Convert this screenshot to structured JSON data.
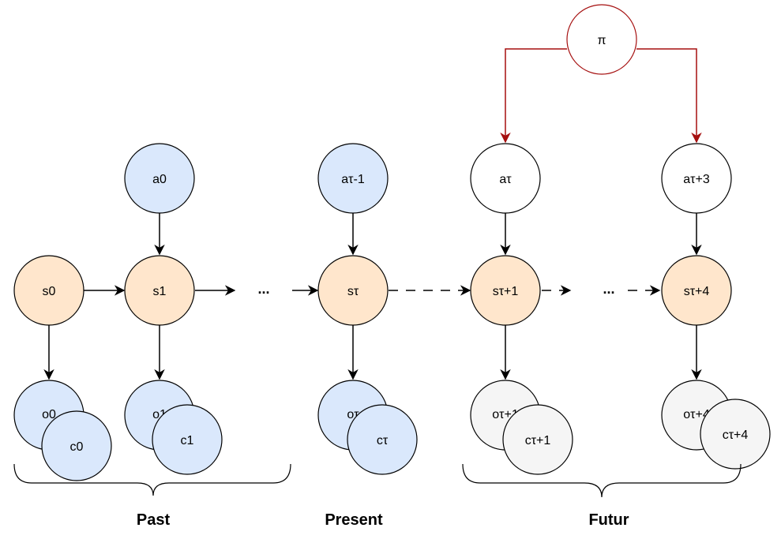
{
  "colors": {
    "blue_fill": "#dae8fc",
    "orange_fill": "#ffe6cc",
    "gray_fill": "#f5f5f5",
    "white_fill": "#ffffff",
    "edge": "#000000",
    "policy_edge": "#a50f0f"
  },
  "nodes": {
    "a0": "a0",
    "s0": "s0",
    "s1": "s1",
    "o0": "o0",
    "c0": "c0",
    "o1": "o1",
    "c1": "c1",
    "a_tau_minus_1": "aτ-1",
    "s_tau": "sτ",
    "o_tau": "oτ",
    "c_tau": "cτ",
    "pi": "π",
    "a_tau": "aτ",
    "s_tau_plus_1": "sτ+1",
    "o_tau_plus_1": "oτ+1",
    "c_tau_plus_1": "cτ+1",
    "a_tau_plus_3": "aτ+3",
    "s_tau_plus_4": "sτ+4",
    "o_tau_plus_4": "oτ+4",
    "c_tau_plus_4": "cτ+4"
  },
  "ellipsis": {
    "past": "...",
    "future": "..."
  },
  "sections": {
    "past": "Past",
    "present": "Present",
    "future": "Futur"
  }
}
